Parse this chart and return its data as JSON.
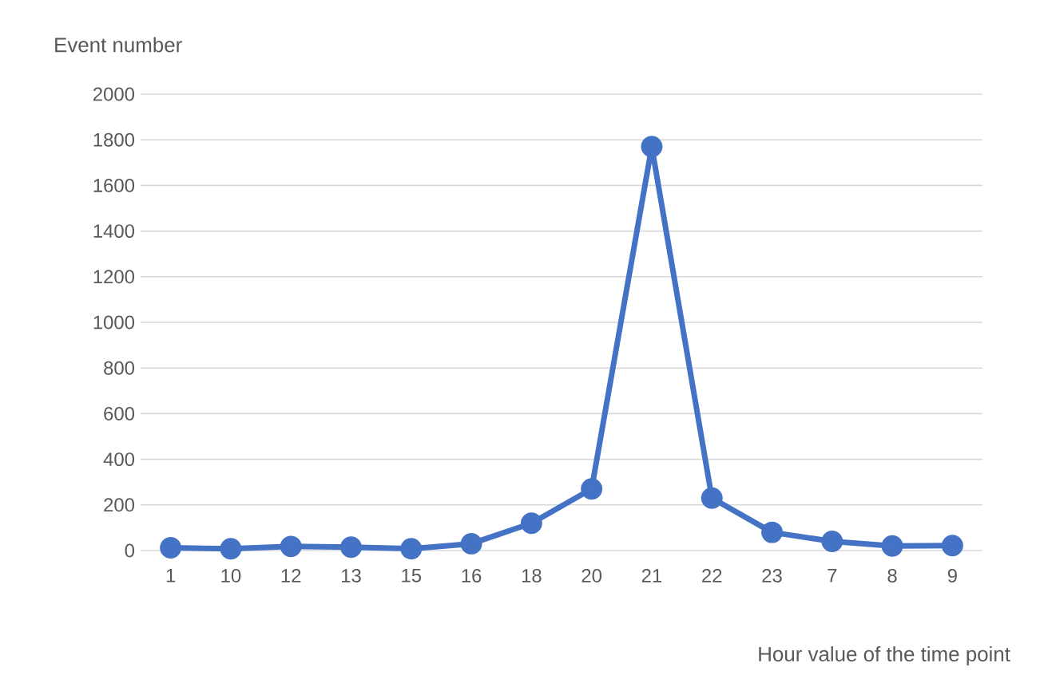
{
  "chart_data": {
    "type": "line",
    "xlabel": "Hour value of the time point",
    "ylabel": "Event number",
    "categories": [
      "1",
      "10",
      "12",
      "13",
      "15",
      "16",
      "18",
      "20",
      "21",
      "22",
      "23",
      "7",
      "8",
      "9"
    ],
    "values": [
      12,
      8,
      18,
      15,
      8,
      30,
      120,
      270,
      1770,
      230,
      80,
      40,
      20,
      22
    ],
    "color": "#4472c4",
    "ylim": [
      0,
      2000
    ],
    "yticks": [
      0,
      200,
      400,
      600,
      800,
      1000,
      1200,
      1400,
      1600,
      1800,
      2000
    ],
    "grid": "y",
    "marker": "circle",
    "line_style": "solid"
  }
}
